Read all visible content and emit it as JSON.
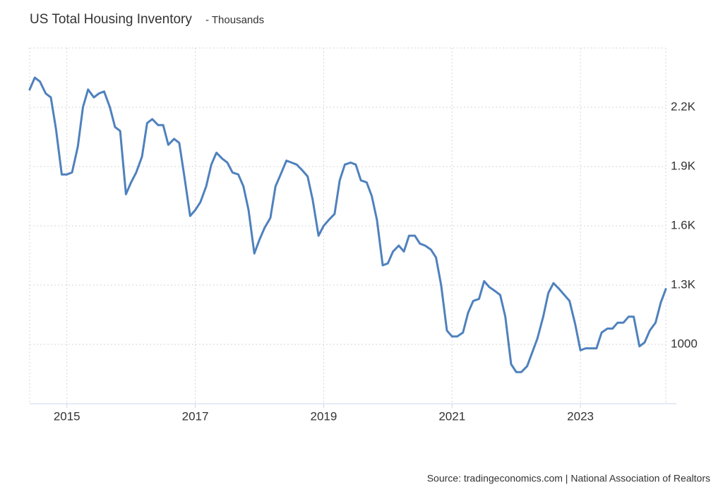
{
  "chart_data": {
    "type": "line",
    "title": "US Total Housing Inventory",
    "subtitle": "- Thousands",
    "source": "Source: tradingeconomics.com | National Association of Realtors",
    "x": [
      2014.42,
      2014.5,
      2014.58,
      2014.67,
      2014.75,
      2014.83,
      2014.92,
      2015,
      2015.08,
      2015.17,
      2015.25,
      2015.33,
      2015.42,
      2015.5,
      2015.58,
      2015.67,
      2015.75,
      2015.83,
      2015.92,
      2016,
      2016.08,
      2016.17,
      2016.25,
      2016.33,
      2016.42,
      2016.5,
      2016.58,
      2016.67,
      2016.75,
      2016.83,
      2016.92,
      2017,
      2017.08,
      2017.17,
      2017.25,
      2017.33,
      2017.42,
      2017.5,
      2017.58,
      2017.67,
      2017.75,
      2017.83,
      2017.92,
      2018,
      2018.08,
      2018.17,
      2018.25,
      2018.33,
      2018.42,
      2018.5,
      2018.58,
      2018.67,
      2018.75,
      2018.83,
      2018.92,
      2019,
      2019.08,
      2019.17,
      2019.25,
      2019.33,
      2019.42,
      2019.5,
      2019.58,
      2019.67,
      2019.75,
      2019.83,
      2019.92,
      2020,
      2020.08,
      2020.17,
      2020.25,
      2020.33,
      2020.42,
      2020.5,
      2020.58,
      2020.67,
      2020.75,
      2020.83,
      2020.92,
      2021,
      2021.08,
      2021.17,
      2021.25,
      2021.33,
      2021.42,
      2021.5,
      2021.58,
      2021.67,
      2021.75,
      2021.83,
      2021.92,
      2022,
      2022.08,
      2022.17,
      2022.25,
      2022.33,
      2022.42,
      2022.5,
      2022.58,
      2022.67,
      2022.75,
      2022.83,
      2022.92,
      2023,
      2023.08,
      2023.17,
      2023.25,
      2023.33,
      2023.42,
      2023.5,
      2023.58,
      2023.67,
      2023.75,
      2023.83,
      2023.92,
      2024,
      2024.08,
      2024.17,
      2024.25,
      2024.33
    ],
    "series": [
      {
        "name": "US Total Housing Inventory",
        "color": "#4f81bd",
        "values": [
          2290,
          2350,
          2330,
          2270,
          2250,
          2090,
          1860,
          1860,
          1870,
          2000,
          2200,
          2290,
          2250,
          2270,
          2280,
          2200,
          2100,
          2080,
          1760,
          1820,
          1870,
          1950,
          2120,
          2140,
          2110,
          2110,
          2010,
          2040,
          2020,
          1850,
          1650,
          1680,
          1720,
          1800,
          1910,
          1970,
          1940,
          1920,
          1870,
          1860,
          1800,
          1680,
          1460,
          1530,
          1590,
          1640,
          1800,
          1860,
          1930,
          1920,
          1910,
          1880,
          1850,
          1730,
          1550,
          1600,
          1630,
          1660,
          1830,
          1910,
          1920,
          1910,
          1830,
          1820,
          1750,
          1630,
          1400,
          1410,
          1470,
          1500,
          1470,
          1550,
          1550,
          1510,
          1500,
          1480,
          1440,
          1300,
          1070,
          1040,
          1040,
          1060,
          1160,
          1220,
          1230,
          1320,
          1290,
          1270,
          1250,
          1140,
          900,
          860,
          860,
          890,
          960,
          1030,
          1140,
          1260,
          1310,
          1280,
          1250,
          1220,
          1100,
          970,
          980,
          980,
          980,
          1060,
          1080,
          1080,
          1110,
          1110,
          1140,
          1140,
          990,
          1010,
          1070,
          1110,
          1210,
          1280
        ]
      }
    ],
    "xlim": [
      2014.42,
      2024.33
    ],
    "xticks": [
      2015,
      2017,
      2019,
      2021,
      2023
    ],
    "ylim": [
      700,
      2500
    ],
    "yticks": [
      1000,
      {
        "value": 1300,
        "label": "1.3K"
      },
      {
        "value": 1600,
        "label": "1.6K"
      },
      {
        "value": 1900,
        "label": "1.9K"
      },
      {
        "value": 2200,
        "label": "2.2K"
      }
    ],
    "grid": true
  }
}
